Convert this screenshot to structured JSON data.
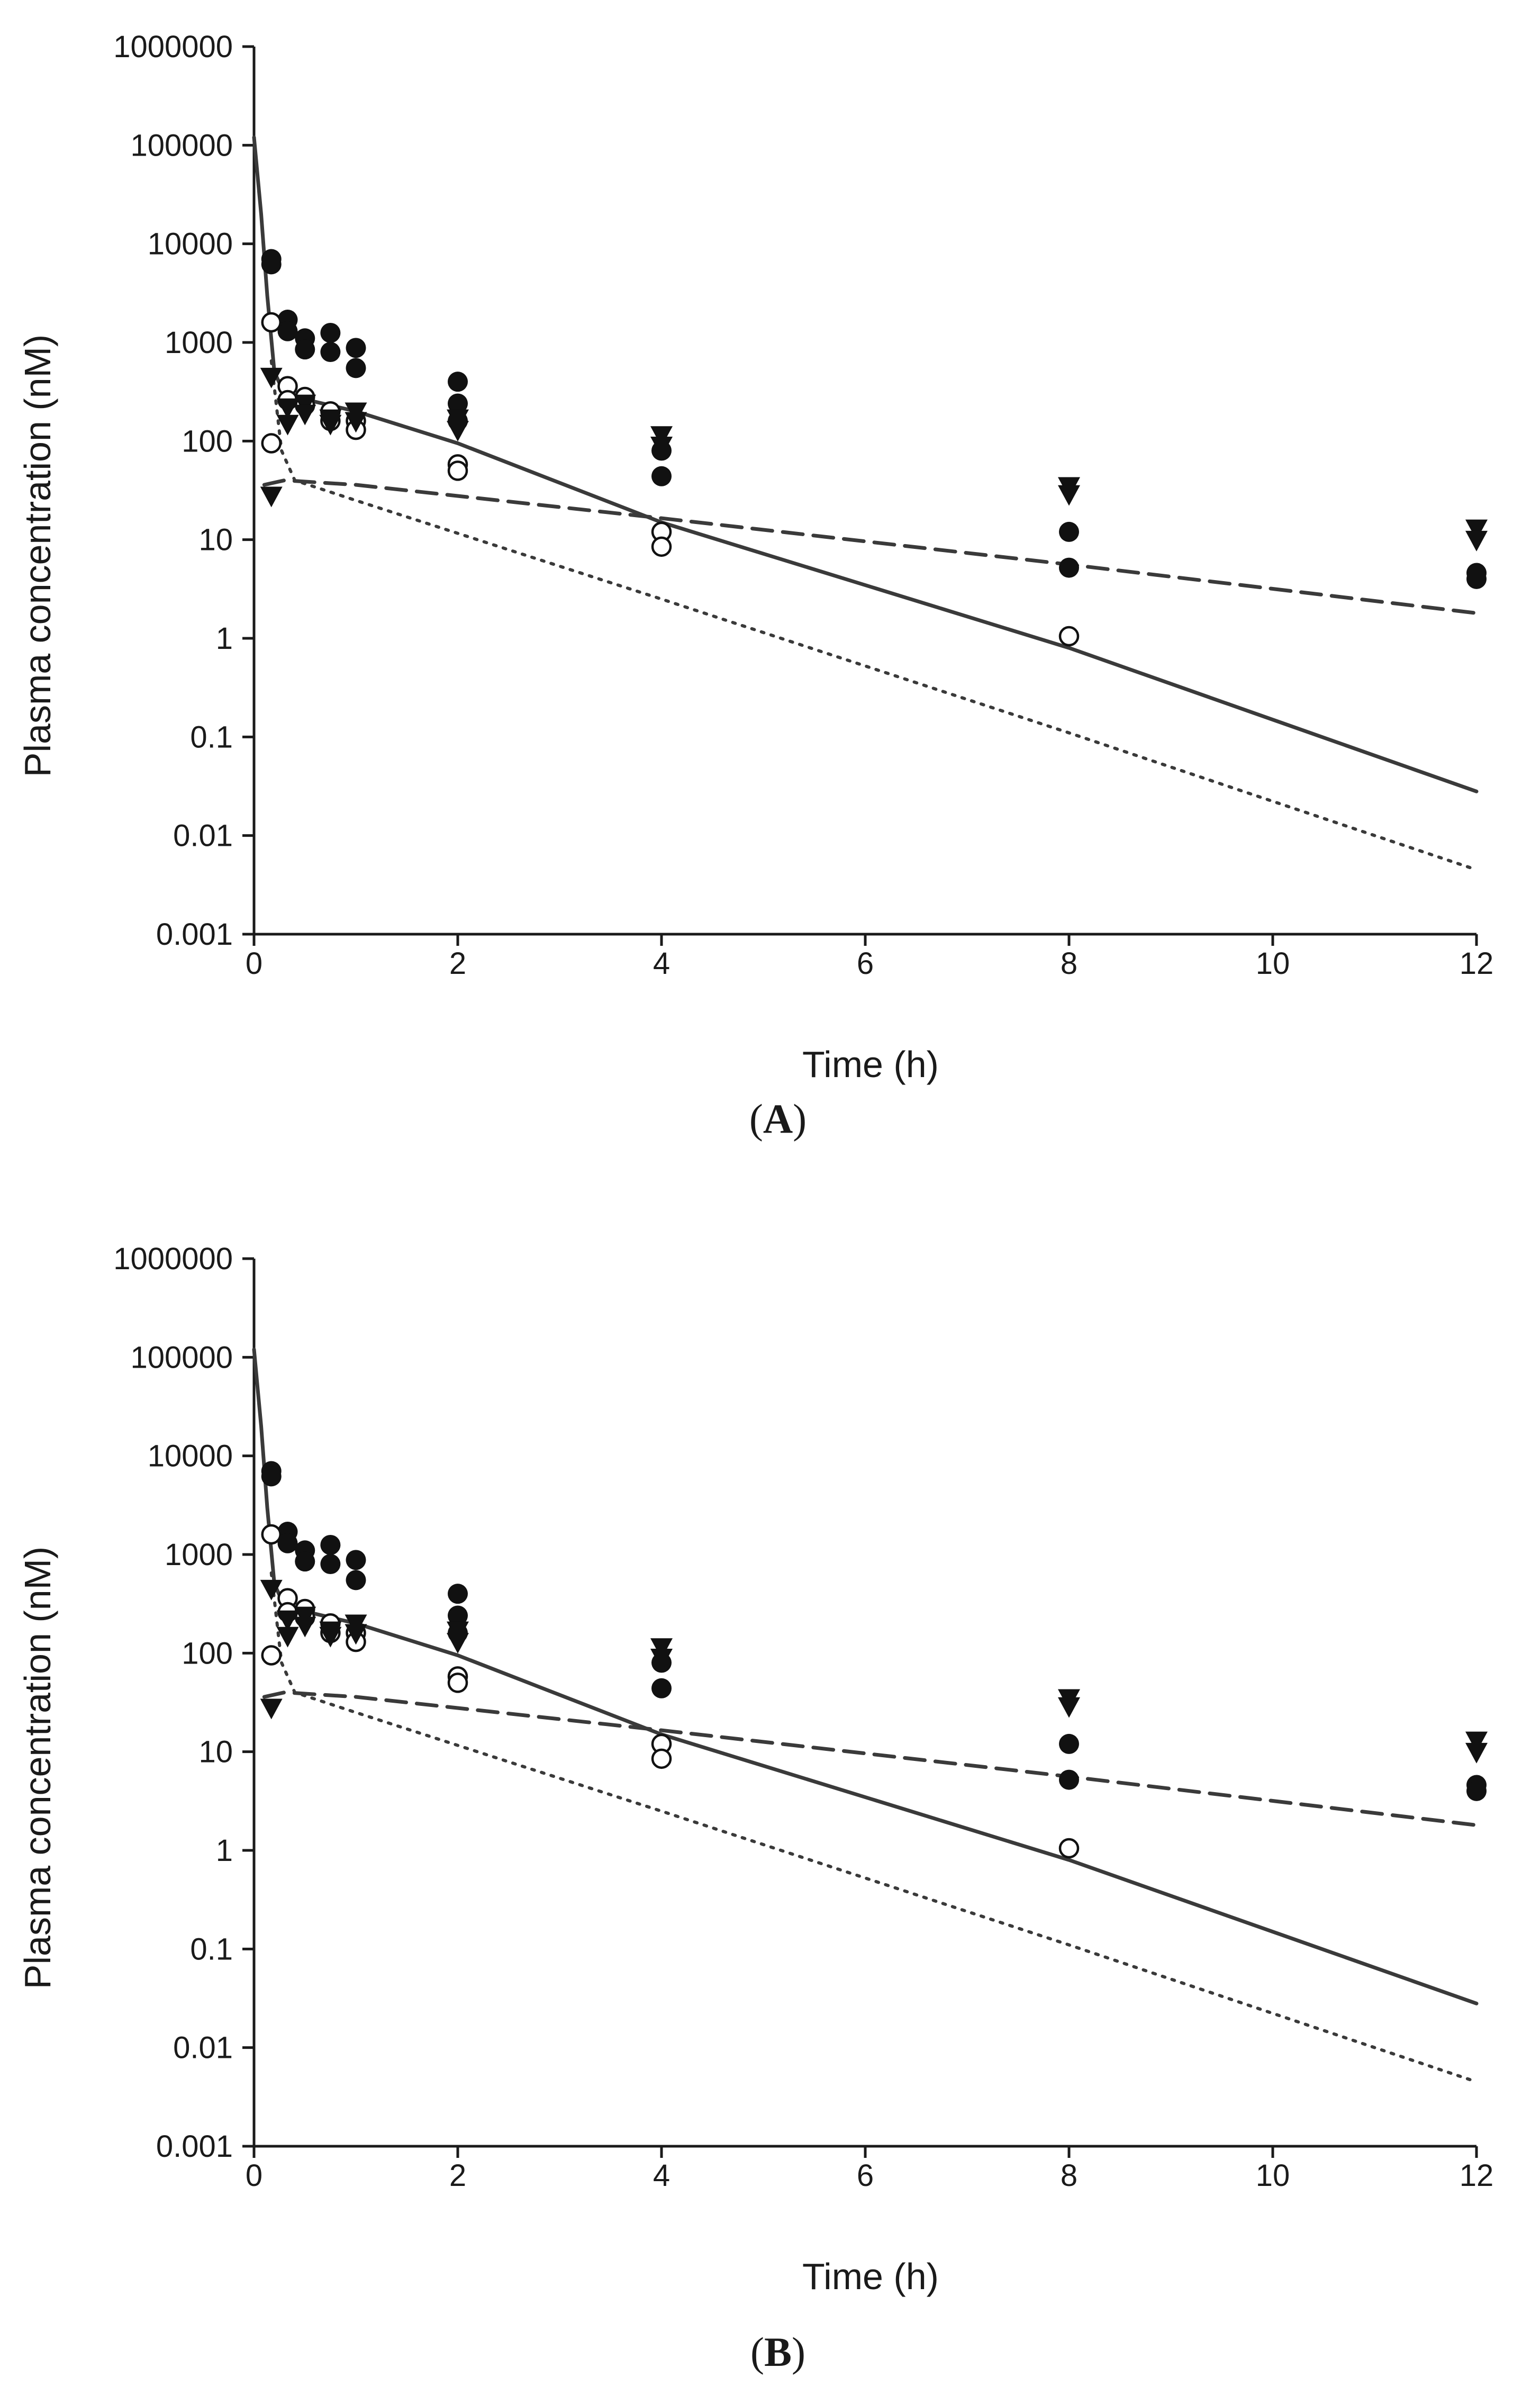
{
  "chart_data": [
    {
      "panel": "A",
      "type": "scatter",
      "xlabel": "Time (h)",
      "ylabel": "Plasma concentration (nM)",
      "yscale": "log",
      "xlim": [
        0,
        12
      ],
      "ylim": [
        0.001,
        1000000
      ],
      "x_ticks": [
        0,
        2,
        4,
        6,
        8,
        10,
        12
      ],
      "x_tick_labels": [
        "0",
        "2",
        "4",
        "6",
        "8",
        "10",
        "12"
      ],
      "y_ticks": [
        0.001,
        0.01,
        0.1,
        1,
        10,
        100,
        1000,
        10000,
        100000,
        1000000
      ],
      "y_tick_labels": [
        "0.001",
        "0.01",
        "0.1",
        "1",
        "10",
        "100",
        "1000",
        "10000",
        "100000",
        "1000000"
      ],
      "series": [
        {
          "name": "observed-filled-circle",
          "marker": "filled-circle",
          "points": [
            [
              0.17,
              7000
            ],
            [
              0.17,
              6200
            ],
            [
              0.33,
              1700
            ],
            [
              0.33,
              1300
            ],
            [
              0.5,
              1100
            ],
            [
              0.5,
              850
            ],
            [
              0.75,
              1250
            ],
            [
              0.75,
              800
            ],
            [
              1,
              880
            ],
            [
              1,
              550
            ],
            [
              2,
              400
            ],
            [
              2,
              240
            ],
            [
              2,
              160
            ],
            [
              4,
              80
            ],
            [
              4,
              44
            ],
            [
              8,
              12
            ],
            [
              8,
              5.2
            ],
            [
              12,
              4.6
            ],
            [
              12,
              4
            ]
          ]
        },
        {
          "name": "observed-open-circle",
          "marker": "open-circle",
          "points": [
            [
              0.17,
              1600
            ],
            [
              0.17,
              95
            ],
            [
              0.33,
              360
            ],
            [
              0.33,
              260
            ],
            [
              0.5,
              280
            ],
            [
              0.5,
              230
            ],
            [
              0.75,
              200
            ],
            [
              0.75,
              160
            ],
            [
              1,
              160
            ],
            [
              1,
              130
            ],
            [
              2,
              58
            ],
            [
              2,
              50
            ],
            [
              4,
              12
            ],
            [
              4,
              8.5
            ],
            [
              8,
              1.05
            ]
          ]
        },
        {
          "name": "observed-filled-triangle",
          "marker": "filled-triangle-down",
          "points": [
            [
              0.17,
              450
            ],
            [
              0.17,
              28
            ],
            [
              0.33,
              220
            ],
            [
              0.33,
              150
            ],
            [
              0.5,
              240
            ],
            [
              0.5,
              190
            ],
            [
              0.75,
              170
            ],
            [
              0.75,
              150
            ],
            [
              1,
              200
            ],
            [
              1,
              160
            ],
            [
              2,
              170
            ],
            [
              2,
              130
            ],
            [
              4,
              115
            ],
            [
              4,
              90
            ],
            [
              8,
              35
            ],
            [
              8,
              29
            ],
            [
              12,
              13
            ],
            [
              12,
              10
            ]
          ]
        },
        {
          "name": "model-solid",
          "line": "solid",
          "points": [
            [
              0,
              120000
            ],
            [
              0.07,
              20000
            ],
            [
              0.13,
              3000
            ],
            [
              0.2,
              500
            ],
            [
              0.3,
              300
            ],
            [
              0.5,
              265
            ],
            [
              1,
              200
            ],
            [
              2,
              95
            ],
            [
              4,
              15
            ],
            [
              8,
              0.8
            ],
            [
              12,
              0.028
            ]
          ]
        },
        {
          "name": "model-dashed",
          "line": "dashed",
          "points": [
            [
              0.1,
              36
            ],
            [
              0.3,
              40
            ],
            [
              1,
              36
            ],
            [
              4,
              16.5
            ],
            [
              8,
              5.6
            ],
            [
              12,
              1.8
            ]
          ]
        },
        {
          "name": "model-dotted",
          "line": "dotted",
          "points": [
            [
              0.17,
              650
            ],
            [
              0.27,
              80
            ],
            [
              0.4,
              40
            ],
            [
              1,
              25
            ],
            [
              4,
              2.5
            ],
            [
              8,
              0.11
            ],
            [
              12,
              0.0045
            ]
          ]
        }
      ]
    },
    {
      "panel": "B",
      "type": "scatter",
      "xlabel": "Time (h)",
      "ylabel": "Plasma concentration (nM)",
      "yscale": "log",
      "xlim": [
        0,
        12
      ],
      "ylim": [
        0.001,
        1000000
      ],
      "x_ticks": [
        0,
        2,
        4,
        6,
        8,
        10,
        12
      ],
      "x_tick_labels": [
        "0",
        "2",
        "4",
        "6",
        "8",
        "10",
        "12"
      ],
      "y_ticks": [
        0.001,
        0.01,
        0.1,
        1,
        10,
        100,
        1000,
        10000,
        100000,
        1000000
      ],
      "y_tick_labels": [
        "0.001",
        "0.01",
        "0.1",
        "1",
        "10",
        "100",
        "1000",
        "10000",
        "100000",
        "1000000"
      ],
      "series": [
        {
          "name": "observed-filled-circle",
          "marker": "filled-circle",
          "points": [
            [
              0.17,
              7000
            ],
            [
              0.17,
              6200
            ],
            [
              0.33,
              1700
            ],
            [
              0.33,
              1300
            ],
            [
              0.5,
              1100
            ],
            [
              0.5,
              850
            ],
            [
              0.75,
              1250
            ],
            [
              0.75,
              800
            ],
            [
              1,
              880
            ],
            [
              1,
              550
            ],
            [
              2,
              400
            ],
            [
              2,
              240
            ],
            [
              2,
              160
            ],
            [
              4,
              80
            ],
            [
              4,
              44
            ],
            [
              8,
              12
            ],
            [
              8,
              5.2
            ],
            [
              12,
              4.6
            ],
            [
              12,
              4
            ]
          ]
        },
        {
          "name": "observed-open-circle",
          "marker": "open-circle",
          "points": [
            [
              0.17,
              1600
            ],
            [
              0.17,
              95
            ],
            [
              0.33,
              360
            ],
            [
              0.33,
              260
            ],
            [
              0.5,
              280
            ],
            [
              0.5,
              230
            ],
            [
              0.75,
              200
            ],
            [
              0.75,
              160
            ],
            [
              1,
              160
            ],
            [
              1,
              130
            ],
            [
              2,
              58
            ],
            [
              2,
              50
            ],
            [
              4,
              12
            ],
            [
              4,
              8.5
            ],
            [
              8,
              1.05
            ]
          ]
        },
        {
          "name": "observed-filled-triangle",
          "marker": "filled-triangle-down",
          "points": [
            [
              0.17,
              450
            ],
            [
              0.17,
              28
            ],
            [
              0.33,
              220
            ],
            [
              0.33,
              150
            ],
            [
              0.5,
              240
            ],
            [
              0.5,
              190
            ],
            [
              0.75,
              170
            ],
            [
              0.75,
              150
            ],
            [
              1,
              200
            ],
            [
              1,
              160
            ],
            [
              2,
              170
            ],
            [
              2,
              130
            ],
            [
              4,
              115
            ],
            [
              4,
              90
            ],
            [
              8,
              35
            ],
            [
              8,
              29
            ],
            [
              12,
              13
            ],
            [
              12,
              10
            ]
          ]
        },
        {
          "name": "model-solid",
          "line": "solid",
          "points": [
            [
              0,
              120000
            ],
            [
              0.07,
              20000
            ],
            [
              0.13,
              3000
            ],
            [
              0.2,
              500
            ],
            [
              0.3,
              300
            ],
            [
              0.5,
              265
            ],
            [
              1,
              200
            ],
            [
              2,
              95
            ],
            [
              4,
              15
            ],
            [
              8,
              0.8
            ],
            [
              12,
              0.028
            ]
          ]
        },
        {
          "name": "model-dashed",
          "line": "dashed",
          "points": [
            [
              0.1,
              36
            ],
            [
              0.3,
              40
            ],
            [
              1,
              36
            ],
            [
              4,
              16.5
            ],
            [
              8,
              5.6
            ],
            [
              12,
              1.8
            ]
          ]
        },
        {
          "name": "model-dotted",
          "line": "dotted",
          "points": [
            [
              0.17,
              650
            ],
            [
              0.27,
              80
            ],
            [
              0.4,
              40
            ],
            [
              1,
              25
            ],
            [
              4,
              2.5
            ],
            [
              8,
              0.11
            ],
            [
              12,
              0.0045
            ]
          ]
        }
      ]
    }
  ],
  "colors": {
    "axis": "#1a1a1a",
    "marker": "#111111",
    "line": "#3a3a3a"
  }
}
